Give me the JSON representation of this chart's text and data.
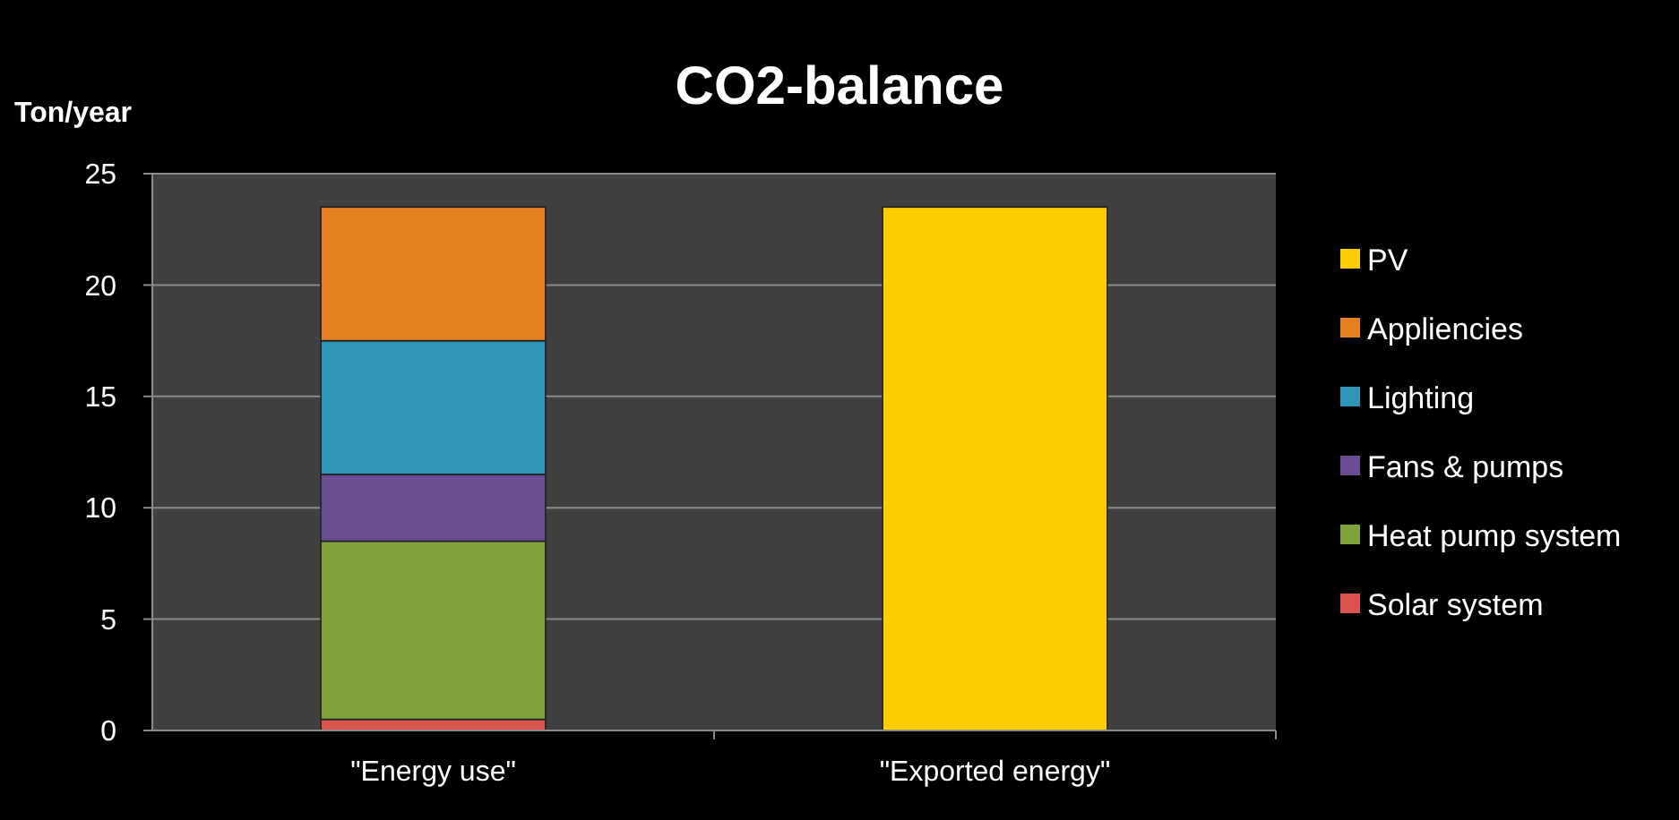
{
  "chart_data": {
    "type": "bar",
    "title": "CO2-balance",
    "ylabel": "Ton/year",
    "categories": [
      "\"Energy use\"",
      "\"Exported energy\""
    ],
    "stacked": true,
    "ylim": [
      0,
      25
    ],
    "yticks": [
      0,
      5,
      10,
      15,
      20,
      25
    ],
    "grid": "y",
    "legend": "right",
    "series": [
      {
        "name": "Solar system",
        "color": "#d9534f",
        "values": [
          0.5,
          0
        ]
      },
      {
        "name": "Heat pump system",
        "color": "#7fa23a",
        "values": [
          8,
          0
        ]
      },
      {
        "name": "Fans & pumps",
        "color": "#6a4c93",
        "values": [
          3,
          0
        ]
      },
      {
        "name": "Lighting",
        "color": "#2e97b8",
        "values": [
          6,
          0
        ]
      },
      {
        "name": "Appliencies",
        "color": "#e67e22",
        "values": [
          6,
          0
        ]
      },
      {
        "name": "PV",
        "color": "#ffcc00",
        "values": [
          0,
          23.5
        ]
      }
    ]
  }
}
